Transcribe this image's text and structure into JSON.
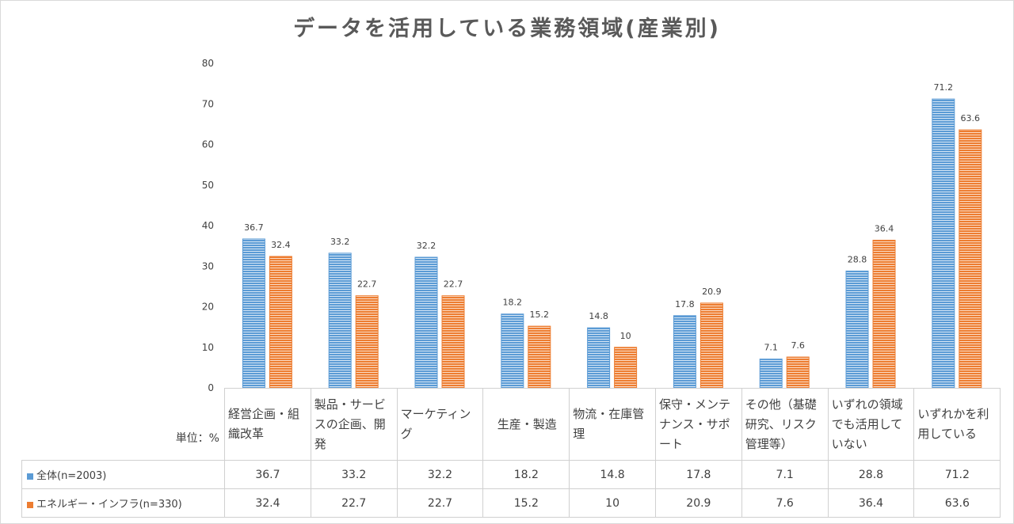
{
  "chart_data": {
    "type": "bar",
    "title": "データを活用している業務領域(産業別)",
    "unit_label": "単位：%",
    "ylim": [
      0,
      80
    ],
    "yticks": [
      0,
      10,
      20,
      30,
      40,
      50,
      60,
      70,
      80
    ],
    "categories": [
      "経営企画・組織改革",
      "製品・サービスの企画、開発",
      "マーケティング",
      "生産・製造",
      "物流・在庫管理",
      "保守・メンテナンス・サポート",
      "その他（基礎研究、リスク管理等）",
      "いずれの領域でも活用していない",
      "いずれかを利用している"
    ],
    "series": [
      {
        "name": "全体(n=2003)",
        "color": "#5b9bd5",
        "values": [
          36.7,
          33.2,
          32.2,
          18.2,
          14.8,
          17.8,
          7.1,
          28.8,
          71.2
        ],
        "labels": [
          "36.7",
          "33.2",
          "32.2",
          "18.2",
          "14.8",
          "17.8",
          "7.1",
          "28.8",
          "71.2"
        ]
      },
      {
        "name": "エネルギー・インフラ(n=330)",
        "color": "#ed7d31",
        "values": [
          32.4,
          22.7,
          22.7,
          15.2,
          10,
          20.9,
          7.6,
          36.4,
          63.6
        ],
        "labels": [
          "32.4",
          "22.7",
          "22.7",
          "15.2",
          "10",
          "20.9",
          "7.6",
          "36.4",
          "63.6"
        ]
      }
    ],
    "legend": "data-table",
    "grid": false
  }
}
